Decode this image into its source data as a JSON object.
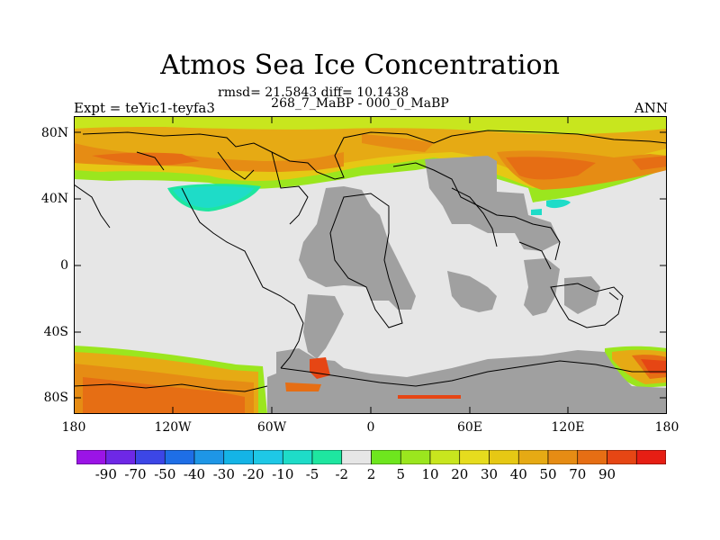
{
  "figure": {
    "title": "Atmos Sea Ice Concentration",
    "stats": "rmsd= 21.5843 diff= 10.1438",
    "subtitle": "268_7_MaBP - 000_0_MaBP",
    "experiment": "Expt = teYic1-teyfa3",
    "season": "ANN"
  },
  "map": {
    "lat_labels": [
      "80N",
      "40N",
      "0",
      "40S",
      "80S"
    ],
    "lon_labels": [
      "180",
      "120W",
      "60W",
      "0",
      "60E",
      "120E",
      "180"
    ],
    "land_color": "#a0a0a0",
    "ocean_color": "#e6e6e6"
  },
  "colorbar": {
    "colors": [
      "#9b14e6",
      "#6e28e6",
      "#3c46e6",
      "#1e6ee6",
      "#1e96e6",
      "#14b4e6",
      "#1ec8e6",
      "#1edcc8",
      "#1ee6a0",
      "#e6e6e6",
      "#6ee61e",
      "#9be61e",
      "#c8e61e",
      "#e6dc1e",
      "#e6c814",
      "#e6aa14",
      "#e68c14",
      "#e66e14",
      "#e64614",
      "#e61e14"
    ],
    "labels": [
      "-90",
      "-70",
      "-50",
      "-40",
      "-30",
      "-20",
      "-10",
      "-5",
      "-2",
      "2",
      "5",
      "10",
      "20",
      "30",
      "40",
      "50",
      "70",
      "90"
    ]
  }
}
